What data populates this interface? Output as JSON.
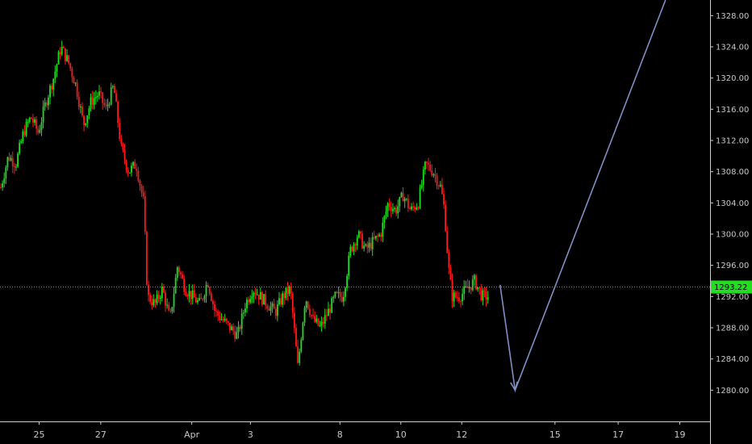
{
  "chart_data": {
    "type": "candlestick",
    "ylim": [
      1276,
      1330
    ],
    "y_ticks": [
      1280,
      1284,
      1288,
      1292,
      1296,
      1300,
      1304,
      1308,
      1312,
      1316,
      1320,
      1324,
      1328
    ],
    "y_tick_labels": [
      "1280.00",
      "1284.00",
      "1288.00",
      "1292.00",
      "1296.00",
      "1300.00",
      "1304.00",
      "1308.00",
      "1312.00",
      "1316.00",
      "1320.00",
      "1324.00",
      "1328.00"
    ],
    "x_ticks": [
      {
        "label": "25",
        "pos": 0.052
      },
      {
        "label": "27",
        "pos": 0.134
      },
      {
        "label": "Apr",
        "pos": 0.255
      },
      {
        "label": "3",
        "pos": 0.333
      },
      {
        "label": "8",
        "pos": 0.452
      },
      {
        "label": "10",
        "pos": 0.533
      },
      {
        "label": "12",
        "pos": 0.614
      },
      {
        "label": "15",
        "pos": 0.738
      },
      {
        "label": "17",
        "pos": 0.822
      },
      {
        "label": "19",
        "pos": 0.904
      }
    ],
    "last_price": 1293.22,
    "last_price_label": "1293.22",
    "colors": {
      "up": "#1fe01f",
      "down": "#ff1a1a",
      "projection": "#7f8fc8",
      "last_price_bg": "#22dd22",
      "grid": "#333333"
    },
    "price_path": [
      [
        0.0,
        1306
      ],
      [
        0.01,
        1310
      ],
      [
        0.02,
        1309
      ],
      [
        0.03,
        1313
      ],
      [
        0.04,
        1315
      ],
      [
        0.05,
        1313
      ],
      [
        0.06,
        1317
      ],
      [
        0.07,
        1320
      ],
      [
        0.08,
        1324
      ],
      [
        0.09,
        1322
      ],
      [
        0.1,
        1319
      ],
      [
        0.11,
        1314
      ],
      [
        0.12,
        1317
      ],
      [
        0.13,
        1318
      ],
      [
        0.14,
        1316
      ],
      [
        0.15,
        1319
      ],
      [
        0.16,
        1311
      ],
      [
        0.17,
        1308
      ],
      [
        0.18,
        1309
      ],
      [
        0.19,
        1304
      ],
      [
        0.195,
        1292
      ],
      [
        0.205,
        1291
      ],
      [
        0.215,
        1293
      ],
      [
        0.225,
        1289
      ],
      [
        0.235,
        1296
      ],
      [
        0.245,
        1293
      ],
      [
        0.255,
        1292
      ],
      [
        0.265,
        1291
      ],
      [
        0.275,
        1294
      ],
      [
        0.285,
        1290
      ],
      [
        0.295,
        1289
      ],
      [
        0.305,
        1288
      ],
      [
        0.315,
        1287
      ],
      [
        0.325,
        1291
      ],
      [
        0.335,
        1293
      ],
      [
        0.345,
        1292
      ],
      [
        0.355,
        1291
      ],
      [
        0.365,
        1290
      ],
      [
        0.375,
        1292
      ],
      [
        0.385,
        1293
      ],
      [
        0.395,
        1283
      ],
      [
        0.405,
        1292
      ],
      [
        0.415,
        1289
      ],
      [
        0.425,
        1288
      ],
      [
        0.435,
        1290
      ],
      [
        0.445,
        1292
      ],
      [
        0.455,
        1292
      ],
      [
        0.465,
        1298
      ],
      [
        0.475,
        1300
      ],
      [
        0.485,
        1298
      ],
      [
        0.495,
        1299
      ],
      [
        0.505,
        1300
      ],
      [
        0.515,
        1304
      ],
      [
        0.525,
        1303
      ],
      [
        0.535,
        1305
      ],
      [
        0.545,
        1303
      ],
      [
        0.555,
        1304
      ],
      [
        0.565,
        1309
      ],
      [
        0.575,
        1308
      ],
      [
        0.585,
        1306
      ],
      [
        0.59,
        1303
      ],
      [
        0.595,
        1296
      ],
      [
        0.6,
        1292
      ],
      [
        0.61,
        1292
      ],
      [
        0.62,
        1293
      ],
      [
        0.63,
        1294
      ],
      [
        0.64,
        1292
      ],
      [
        0.65,
        1292
      ]
    ],
    "projection": [
      {
        "x": 0.665,
        "y": 1293.5
      },
      {
        "x": 0.685,
        "y": 1280
      },
      {
        "x": 0.885,
        "y": 1330
      }
    ]
  }
}
